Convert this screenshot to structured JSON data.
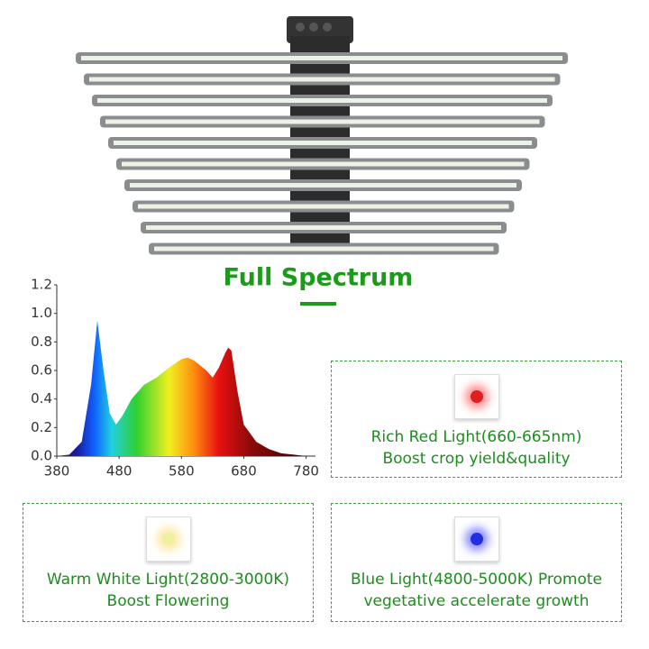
{
  "title": "Full Spectrum",
  "chart_data": {
    "type": "area",
    "x": [
      380,
      400,
      420,
      435,
      445,
      455,
      465,
      475,
      485,
      500,
      520,
      540,
      560,
      580,
      590,
      600,
      620,
      630,
      640,
      650,
      655,
      660,
      670,
      680,
      700,
      720,
      740,
      760,
      780
    ],
    "values": [
      0,
      0.01,
      0.1,
      0.5,
      0.95,
      0.6,
      0.3,
      0.22,
      0.28,
      0.4,
      0.5,
      0.55,
      0.62,
      0.68,
      0.69,
      0.67,
      0.6,
      0.55,
      0.62,
      0.72,
      0.76,
      0.74,
      0.45,
      0.22,
      0.1,
      0.05,
      0.02,
      0.01,
      0
    ],
    "xlim": [
      380,
      795
    ],
    "ylim": [
      0,
      1.2
    ],
    "xticks": [
      380,
      480,
      580,
      680,
      780
    ],
    "yticks": [
      {
        "value": 0,
        "label": "0.0"
      },
      0.2,
      0.4,
      0.6,
      0.8,
      {
        "value": 1,
        "label": "1.0"
      },
      1.2
    ]
  },
  "cards": [
    {
      "title": "Rich Red Light(660-665nm)",
      "text": "Boost crop yield&quality"
    },
    {
      "title": "Warm White Light(2800-3000K)",
      "text": "Boost Flowering"
    },
    {
      "title": "Blue Light(4800-5000K)  Promote",
      "text": "vegetative accelerate growth"
    }
  ]
}
